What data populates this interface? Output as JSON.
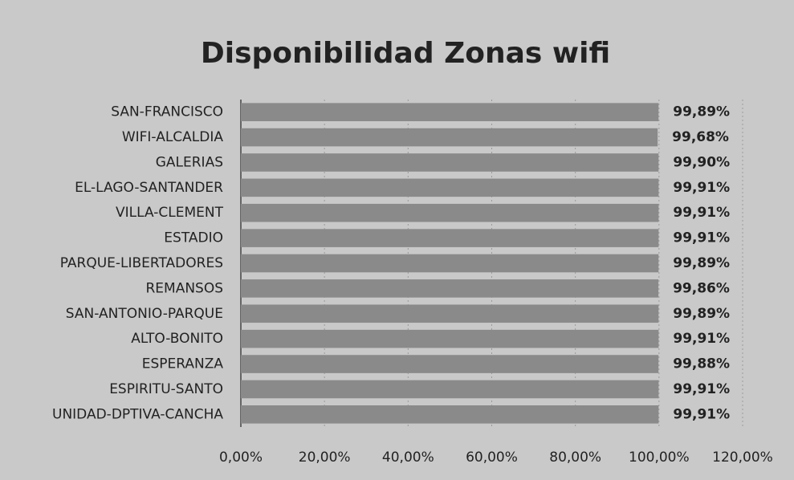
{
  "chart_data": {
    "type": "bar",
    "orientation": "horizontal",
    "title": "Disponibilidad Zonas wifi",
    "categories": [
      "SAN-FRANCISCO",
      "WIFI-ALCALDIA",
      "GALERIAS",
      "EL-LAGO-SANTANDER",
      "VILLA-CLEMENT",
      "ESTADIO",
      "PARQUE-LIBERTADORES",
      "REMANSOS",
      "SAN-ANTONIO-PARQUE",
      "ALTO-BONITO",
      "ESPERANZA",
      "ESPIRITU-SANTO",
      "UNIDAD-DPTIVA-CANCHA"
    ],
    "values": [
      99.89,
      99.68,
      99.9,
      99.91,
      99.91,
      99.91,
      99.89,
      99.86,
      99.89,
      99.91,
      99.88,
      99.91,
      99.91
    ],
    "value_labels": [
      "99,89%",
      "99,68%",
      "99,90%",
      "99,91%",
      "99,91%",
      "99,91%",
      "99,89%",
      "99,86%",
      "99,89%",
      "99,91%",
      "99,88%",
      "99,91%",
      "99,91%"
    ],
    "color": "#8a8a8a",
    "xlim": [
      0,
      120
    ],
    "xticks": [
      {
        "value": 0,
        "label": "0,00%"
      },
      {
        "value": 20,
        "label": "20,00%"
      },
      {
        "value": 40,
        "label": "40,00%"
      },
      {
        "value": 60,
        "label": "60,00%"
      },
      {
        "value": 80,
        "label": "80,00%"
      },
      {
        "value": 100,
        "label": "100,00%"
      },
      {
        "value": 120,
        "label": "120,00%"
      }
    ],
    "grid": true
  }
}
